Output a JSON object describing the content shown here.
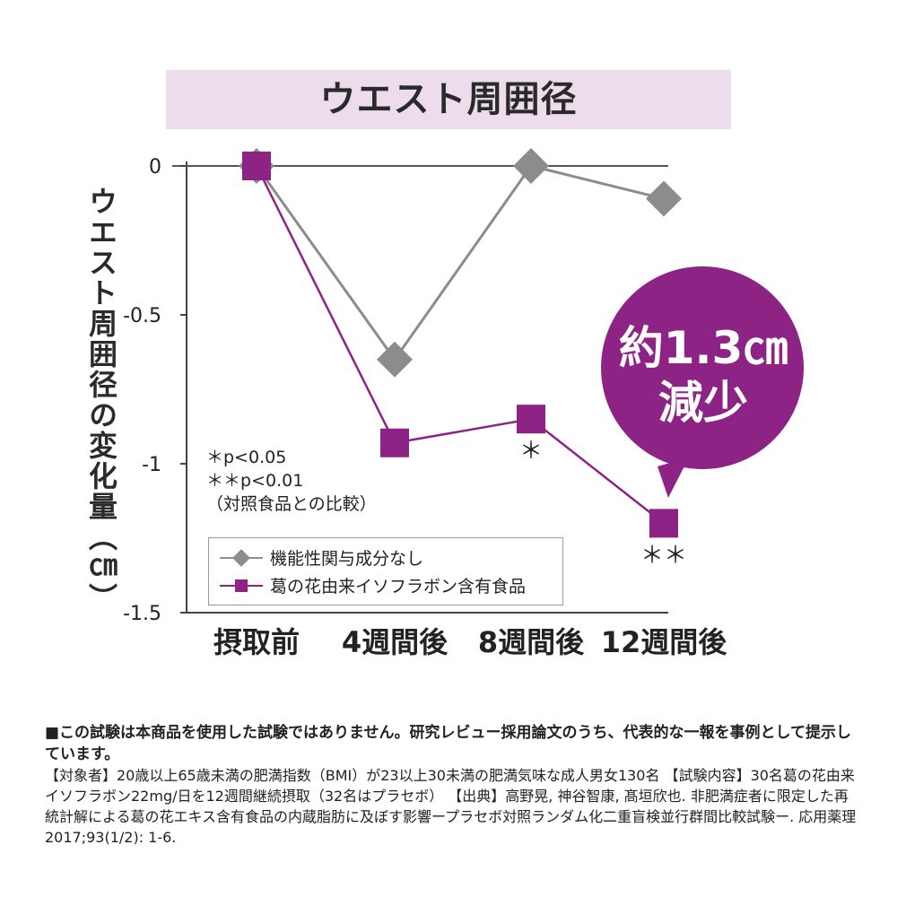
{
  "colors": {
    "title_band": "#ecdcec",
    "control": "#8c8c8c",
    "treatment": "#8e2386",
    "bubble": "#8e2386"
  },
  "chart_data": {
    "type": "line",
    "title": "ウエスト周囲径",
    "ylabel": "ウエスト周囲径の変化量（㎝）",
    "categories": [
      "摂取前",
      "4週間後",
      "8週間後",
      "12週間後"
    ],
    "ylim": [
      -1.5,
      0
    ],
    "yticks": [
      "0",
      "-0.5",
      "-1",
      "-1.5"
    ],
    "series": [
      {
        "name": "機能性関与成分なし",
        "marker": "diamond",
        "values": [
          0,
          -0.65,
          0,
          -0.11
        ]
      },
      {
        "name": "葛の花由来イソフラボン含有食品",
        "marker": "square",
        "values": [
          0,
          -0.93,
          -0.85,
          -1.2
        ]
      }
    ],
    "point_annotations": [
      "",
      "",
      "＊",
      "＊＊"
    ],
    "significance_notes": [
      "＊p<0.05",
      "＊＊p<0.01",
      "（対照食品との比較）"
    ],
    "callout": {
      "line1": "約1.3㎝",
      "line2": "減少"
    }
  },
  "footnote": {
    "heading": "■この試験は本商品を使用した試験ではありません。研究レビュー採用論文のうち、代表的な一報を事例として提示しています。",
    "body": "【対象者】20歳以上65歳未満の肥満指数（BMI）が23以上30未満の肥満気味な成人男女130名 【試験内容】30名葛の花由来イソフラボン22mg/日を12週間継続摂取（32名はプラセボ） 【出典】高野晃, 神谷智康, 髙垣欣也. 非肥満症者に限定した再統計解による葛の花エキス含有食品の内蔵脂肪に及ぼす影響ープラセボ対照ランダム化二重盲検並行群間比較試験ー. 応用薬理2017;93(1/2): 1-6."
  }
}
